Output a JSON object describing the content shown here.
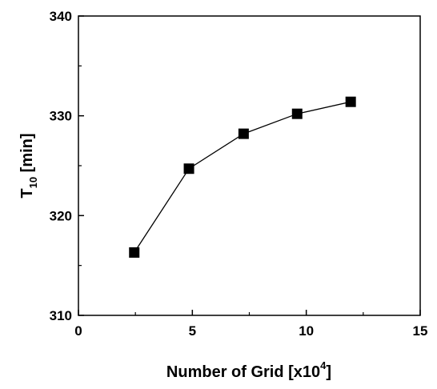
{
  "chart_data": {
    "type": "line",
    "xlabel_main": "Number of Grid [x10",
    "xlabel_sup": "4",
    "xlabel_end": "]",
    "ylabel_main": "T",
    "ylabel_sub": "10",
    "ylabel_end": " [min]",
    "xlim": [
      0,
      15
    ],
    "ylim": [
      310,
      340
    ],
    "xticks": [
      0,
      5,
      10,
      15
    ],
    "yticks": [
      310,
      320,
      330,
      340
    ],
    "grid": false,
    "series": [
      {
        "marker": "square",
        "color": "#000000",
        "x": [
          2.45,
          4.85,
          7.25,
          9.6,
          11.95
        ],
        "y": [
          316.3,
          324.7,
          328.2,
          330.2,
          331.4
        ]
      }
    ]
  }
}
